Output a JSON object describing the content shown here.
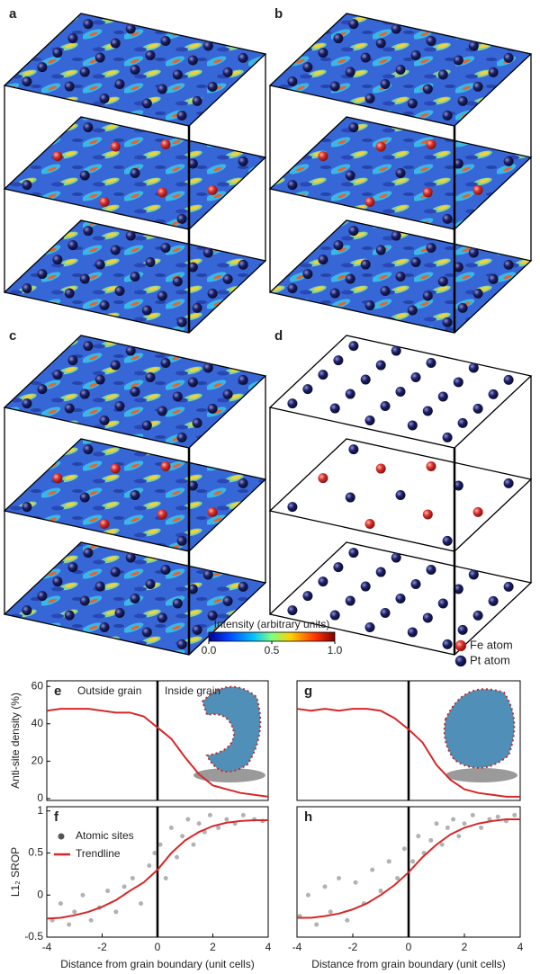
{
  "figure": {
    "panels": [
      "a",
      "b",
      "c",
      "d"
    ],
    "colorbar": {
      "label": "Intensity (arbitrary units)",
      "lim": [
        0,
        1
      ],
      "ticks": [
        {
          "value": 0,
          "label": "0.0"
        },
        0.5,
        {
          "value": 1,
          "label": "1.0"
        }
      ]
    },
    "legend": [
      {
        "name": "Fe atom",
        "color": "#d9302c"
      },
      {
        "name": "Pt atom",
        "color": "#1c2066"
      }
    ]
  },
  "chart_data": [
    {
      "type": "line",
      "panel": "e",
      "ylabel": "Anti-site density (%)",
      "annotations": [
        "Outside grain",
        "Inside grain"
      ],
      "xlim": [
        -4,
        4
      ],
      "ylim": [
        -1,
        63
      ],
      "yticks": [
        0,
        20,
        40,
        60
      ],
      "boundary": 0,
      "series": [
        {
          "color": "#d62728",
          "x": [
            -4,
            -3.5,
            -3,
            -2.5,
            -2,
            -1.5,
            -1,
            -0.5,
            0,
            0.5,
            1,
            1.5,
            2,
            2.5,
            3,
            3.5,
            4
          ],
          "values": [
            47,
            48,
            48,
            48,
            47,
            46,
            46,
            44,
            38,
            32,
            22,
            13,
            7,
            5,
            3,
            2,
            1
          ]
        }
      ]
    },
    {
      "type": "scatter",
      "panel": "f",
      "ylabel": "L1₂ SROP",
      "xlabel": "Distance from grain boundary (unit cells)",
      "xlim": [
        -4,
        4
      ],
      "ylim": [
        -0.5,
        1.05
      ],
      "xticks": [
        -4,
        -2,
        0,
        2,
        4
      ],
      "yticks": [
        -0.5,
        0,
        0.5,
        1
      ],
      "boundary": 0,
      "series": [
        {
          "name": "Atomic sites",
          "type": "scatter",
          "color": "#555555",
          "x": [
            -3.8,
            -3.5,
            -3.2,
            -3,
            -2.7,
            -2.4,
            -2.1,
            -1.8,
            -1.5,
            -1.2,
            -0.9,
            -0.6,
            -0.3,
            -0.1,
            0.1,
            0.3,
            0.5,
            0.7,
            0.9,
            1.1,
            1.3,
            1.5,
            1.7,
            1.9,
            2.2,
            2.5,
            2.8,
            3.1,
            3.5,
            3.8
          ],
          "values": [
            -0.3,
            -0.1,
            -0.35,
            -0.2,
            0,
            -0.3,
            -0.15,
            0.05,
            -0.2,
            0.1,
            0.2,
            -0.1,
            0.35,
            0.5,
            0.6,
            0.2,
            0.8,
            0.45,
            0.7,
            0.9,
            0.6,
            0.85,
            0.75,
            0.95,
            0.8,
            0.9,
            0.85,
            0.95,
            0.9,
            0.88
          ]
        },
        {
          "name": "Trendline",
          "type": "line",
          "color": "#d62728",
          "x": [
            -4,
            -3.5,
            -3,
            -2.5,
            -2,
            -1.5,
            -1,
            -0.5,
            0,
            0.5,
            1,
            1.5,
            2,
            2.5,
            3,
            3.5,
            4
          ],
          "values": [
            -0.28,
            -0.27,
            -0.24,
            -0.2,
            -0.14,
            -0.06,
            0.05,
            0.15,
            0.3,
            0.5,
            0.65,
            0.75,
            0.82,
            0.86,
            0.88,
            0.89,
            0.89
          ]
        }
      ]
    },
    {
      "type": "line",
      "panel": "g",
      "xlim": [
        -4,
        4
      ],
      "ylim": [
        -1,
        63
      ],
      "boundary": 0,
      "series": [
        {
          "color": "#d62728",
          "x": [
            -4,
            -3.5,
            -3,
            -2.5,
            -2,
            -1.5,
            -1,
            -0.5,
            0,
            0.5,
            1,
            1.5,
            2,
            2.5,
            3,
            3.5,
            4
          ],
          "values": [
            48,
            47,
            48,
            47,
            48,
            48,
            47,
            43,
            37,
            30,
            18,
            10,
            5,
            3,
            2,
            1,
            1
          ]
        }
      ]
    },
    {
      "type": "scatter",
      "panel": "h",
      "xlabel": "Distance from grain boundary (unit cells)",
      "xlim": [
        -4,
        4
      ],
      "ylim": [
        -0.5,
        1.05
      ],
      "xticks": [
        -4,
        -2,
        0,
        2,
        4
      ],
      "boundary": 0,
      "series": [
        {
          "type": "scatter",
          "color": "#555555",
          "x": [
            -3.9,
            -3.6,
            -3.3,
            -3,
            -2.8,
            -2.5,
            -2.2,
            -1.9,
            -1.6,
            -1.3,
            -1,
            -0.7,
            -0.4,
            -0.15,
            0.15,
            0.35,
            0.55,
            0.8,
            1,
            1.2,
            1.4,
            1.6,
            1.8,
            2,
            2.3,
            2.6,
            2.9,
            3.2,
            3.5,
            3.8
          ],
          "values": [
            -0.25,
            0,
            -0.35,
            0.1,
            -0.2,
            0.2,
            -0.3,
            0.15,
            -0.1,
            0.3,
            0.05,
            0.4,
            0.2,
            0.55,
            0.4,
            0.7,
            0.5,
            0.65,
            0.85,
            0.6,
            0.8,
            0.9,
            0.7,
            0.85,
            0.95,
            0.8,
            0.9,
            0.93,
            0.88,
            0.95
          ]
        },
        {
          "type": "line",
          "color": "#d62728",
          "x": [
            -4,
            -3.5,
            -3,
            -2.5,
            -2,
            -1.5,
            -1,
            -0.5,
            0,
            0.5,
            1,
            1.5,
            2,
            2.5,
            3,
            3.5,
            4
          ],
          "values": [
            -0.27,
            -0.27,
            -0.25,
            -0.22,
            -0.17,
            -0.1,
            0,
            0.12,
            0.27,
            0.45,
            0.6,
            0.72,
            0.8,
            0.85,
            0.88,
            0.9,
            0.9
          ]
        }
      ]
    }
  ]
}
